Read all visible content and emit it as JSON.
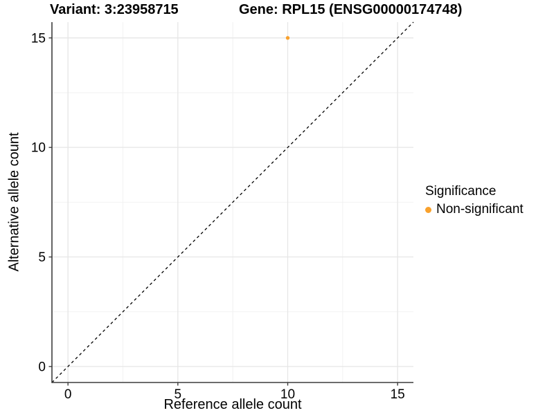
{
  "titles": {
    "variant": "Variant: 3:23958715",
    "gene": "Gene: RPL15 (ENSG00000174748)"
  },
  "chart_data": {
    "type": "scatter",
    "xlabel": "Reference allele count",
    "ylabel": "Alternative allele count",
    "xlim": [
      -0.73,
      15.72
    ],
    "ylim": [
      -0.73,
      15.72
    ],
    "x_ticks": [
      0,
      5,
      10,
      15
    ],
    "y_ticks": [
      0,
      5,
      10,
      15
    ],
    "x_minor_ticks": [
      2.5,
      7.5,
      12.5
    ],
    "y_minor_ticks": [
      2.5,
      7.5,
      12.5
    ],
    "grid": true,
    "points": [
      {
        "x": 10,
        "y": 15,
        "series": "Non-significant"
      }
    ],
    "reference_line": {
      "type": "identity",
      "slope": 1,
      "intercept": 0,
      "style": "dashed",
      "color": "#000000"
    },
    "legend": {
      "title": "Significance",
      "position": "right",
      "entries": [
        {
          "label": "Non-significant",
          "color": "#F9A12C"
        }
      ]
    },
    "colors": {
      "grid_major": "#E6E6E6",
      "grid_minor": "#F2F2F2",
      "axis_line": "#3C3C3C",
      "tick_label": "#000000",
      "point": "#F9A12C"
    }
  }
}
